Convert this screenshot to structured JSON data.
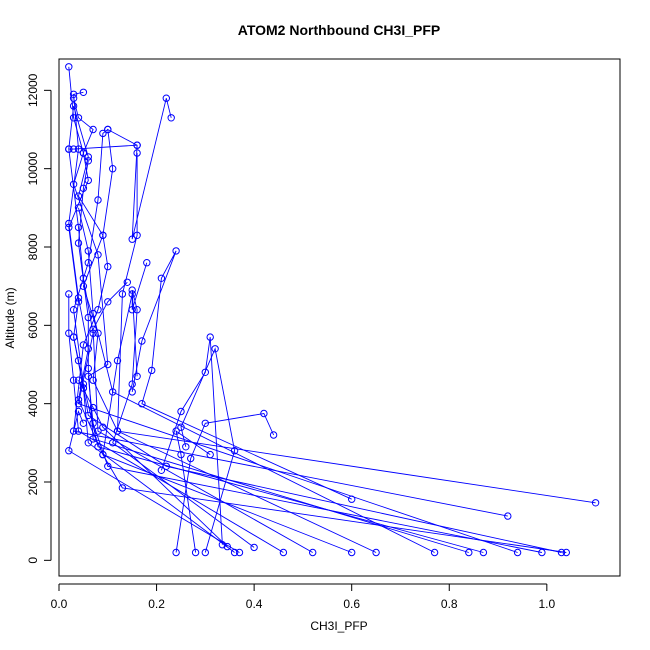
{
  "chart_data": {
    "type": "line",
    "title": "ATOM2 Northbound CH3I_PFP",
    "xlabel": "CH3I_PFP",
    "ylabel": "Altitude (m)",
    "xlim": [
      0,
      1.15
    ],
    "ylim": [
      -400,
      12800
    ],
    "xticks": [
      "0.0",
      "0.2",
      "0.4",
      "0.6",
      "0.8",
      "1.0"
    ],
    "xtick_values": [
      0,
      0.2,
      0.4,
      0.6,
      0.8,
      1.0
    ],
    "yticks": [
      "0",
      "2000",
      "4000",
      "6000",
      "8000",
      "10000",
      "12000"
    ],
    "ytick_values": [
      0,
      2000,
      4000,
      6000,
      8000,
      10000,
      12000
    ],
    "marker": "open-circle",
    "color": "#0000ff",
    "grid": false,
    "series": [
      {
        "x": [
          1.03,
          0.22,
          0.06,
          0.05,
          0.03,
          0.04,
          0.02,
          0.06,
          0.05,
          0.03,
          0.02
        ],
        "y": [
          200,
          2400,
          3700,
          4400,
          5700,
          6600,
          8500,
          9700,
          10400,
          11300,
          12600
        ]
      },
      {
        "x": [
          1.04,
          0.13,
          0.09,
          0.04,
          0.06,
          0.04,
          0.02,
          0.04,
          0.03,
          0.05
        ],
        "y": [
          200,
          1850,
          2700,
          4100,
          5400,
          6700,
          8600,
          10500,
          11900,
          11950
        ]
      },
      {
        "x": [
          0.99,
          0.1,
          0.07,
          0.06,
          0.1,
          0.08,
          0.03,
          0.05,
          0.07,
          0.04,
          0.03
        ],
        "y": [
          200,
          2400,
          3500,
          4700,
          5000,
          7800,
          9600,
          10400,
          11000,
          11300,
          11800
        ]
      },
      {
        "x": [
          1.1,
          0.12,
          0.07,
          0.08,
          0.05,
          0.09,
          0.04,
          0.06,
          0.03,
          0.02
        ],
        "y": [
          1470,
          3300,
          4600,
          5800,
          7000,
          8300,
          9300,
          10300,
          11600,
          10500
        ]
      },
      {
        "x": [
          0.94,
          0.04,
          0.07,
          0.05,
          0.04,
          0.02,
          0.03,
          0.16
        ],
        "y": [
          200,
          4000,
          5800,
          7200,
          8500,
          10500,
          10500,
          10600
        ]
      },
      {
        "x": [
          0.92,
          0.03,
          0.05,
          0.08,
          0.1,
          0.09,
          0.11,
          0.1,
          0.16,
          0.15,
          0.22,
          0.23
        ],
        "y": [
          1130,
          3300,
          5500,
          6400,
          7500,
          8300,
          10000,
          11000,
          10600,
          8200,
          11800,
          11300
        ]
      },
      {
        "x": [
          0.87,
          0.08,
          0.05,
          0.03,
          0.06,
          0.08,
          0.09,
          0.1
        ],
        "y": [
          200,
          2900,
          4500,
          6400,
          7600,
          9200,
          10900,
          11000
        ]
      },
      {
        "x": [
          0.84,
          0.07,
          0.06,
          0.06,
          0.04,
          0.05,
          0.06
        ],
        "y": [
          200,
          3100,
          4900,
          6200,
          8100,
          9500,
          10200
        ]
      },
      {
        "x": [
          0.77,
          0.11,
          0.07,
          0.06,
          0.04
        ],
        "y": [
          200,
          4300,
          6300,
          7900,
          9000
        ]
      },
      {
        "x": [
          0.65,
          0.12,
          0.13,
          0.16,
          0.16
        ],
        "y": [
          200,
          3300,
          6800,
          8300,
          10400
        ]
      },
      {
        "x": [
          0.6,
          0.17,
          0.19,
          0.21,
          0.24,
          0.17,
          0.15
        ],
        "y": [
          1560,
          4000,
          4850,
          7200,
          7900,
          5600,
          4300
        ]
      },
      {
        "x": [
          0.6,
          0.09,
          0.12,
          0.15,
          0.15,
          0.18
        ],
        "y": [
          200,
          2700,
          5100,
          6800,
          6400,
          7600
        ]
      },
      {
        "x": [
          0.52,
          0.08,
          0.07,
          0.1,
          0.14
        ],
        "y": [
          200,
          3300,
          5900,
          6600,
          7100
        ]
      },
      {
        "x": [
          0.46,
          0.04,
          0.03,
          0.02,
          0.02
        ],
        "y": [
          200,
          3300,
          4600,
          5800,
          6800
        ]
      },
      {
        "x": [
          0.4,
          0.11,
          0.15,
          0.16,
          0.15,
          0.16
        ],
        "y": [
          330,
          3000,
          4500,
          6400,
          6900,
          4700
        ]
      },
      {
        "x": [
          0.37,
          0.02,
          0.04,
          0.05
        ],
        "y": [
          200,
          2800,
          3800,
          3500
        ]
      },
      {
        "x": [
          0.36,
          0.06,
          0.05,
          0.04,
          0.03
        ],
        "y": [
          200,
          3000,
          4400,
          5100,
          5700
        ]
      },
      {
        "x": [
          0.345,
          0.09,
          0.07,
          0.04
        ],
        "y": [
          350,
          3400,
          3900,
          4600
        ]
      },
      {
        "x": [
          0.335,
          0.31,
          0.3,
          0.25,
          0.21
        ],
        "y": [
          400,
          5700,
          4800,
          3800,
          2300
        ]
      },
      {
        "x": [
          0.3,
          0.36,
          0.32,
          0.25,
          0.26
        ],
        "y": [
          200,
          2800,
          5400,
          3400,
          2900
        ]
      },
      {
        "x": [
          0.28,
          0.25,
          0.24,
          0.31
        ],
        "y": [
          200,
          2700,
          3300,
          2700
        ]
      },
      {
        "x": [
          0.24,
          0.27,
          0.3,
          0.42,
          0.44
        ],
        "y": [
          200,
          2600,
          3500,
          3750,
          3200
        ]
      }
    ]
  }
}
